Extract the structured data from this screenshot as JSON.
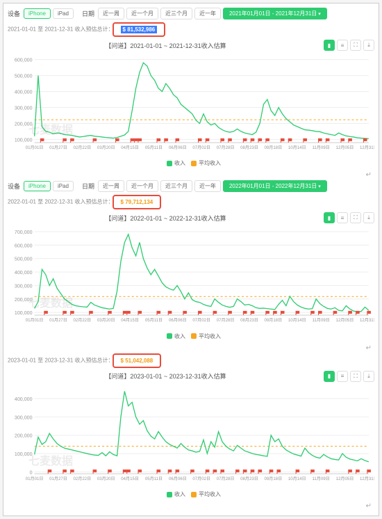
{
  "labels": {
    "device": "设备",
    "iphone": "iPhone",
    "ipad": "iPad",
    "date": "日期",
    "week": "近一周",
    "month": "近一个月",
    "threeMonths": "近三个月",
    "year": "近一年",
    "watermark": "七麦数据",
    "legend_revenue": "收入",
    "legend_avg": "平均收入",
    "summary_mid": " 收入预估总计：",
    "return": "↵"
  },
  "toolbar": [
    "bar",
    "line",
    "fullscreen",
    "download"
  ],
  "colors": {
    "line": "#2ecc71",
    "avg": "#f5a623",
    "grid": "#eeeeee",
    "axis": "#cccccc",
    "tick_text": "#999999",
    "marker": "#e74c3c",
    "highlight_box": "#e74c3c",
    "bg": "#ffffff"
  },
  "panels": [
    {
      "id": "p2021",
      "showFilters": true,
      "activeRange": "2021年01月01日 - 2021年12月31日",
      "summary_prefix": "2021-01-01 至 2021-12-31",
      "total": "$ 81,532,986",
      "total_style": "bluebg",
      "chart_title": "【问道】2021-01-01 ~ 2021-12-31收入估算",
      "yTicks": [
        100000,
        200000,
        300000,
        400000,
        500000,
        600000
      ],
      "yMin": 80000,
      "yMax": 620000,
      "xTicks": [
        "01月01日",
        "01月27日",
        "02月22日",
        "03月20日",
        "04月15日",
        "05月11日",
        "06月06日",
        "07月02日",
        "07月28日",
        "08月23日",
        "09月18日",
        "10月14日",
        "11月09日",
        "12月05日",
        "12月31日"
      ],
      "avg": 223000,
      "series": [
        120000,
        500000,
        180000,
        150000,
        145000,
        135000,
        140000,
        138000,
        130000,
        128000,
        125000,
        120000,
        115000,
        118000,
        122000,
        125000,
        120000,
        118000,
        115000,
        112000,
        110000,
        108000,
        112000,
        120000,
        128000,
        150000,
        280000,
        420000,
        520000,
        580000,
        560000,
        500000,
        470000,
        420000,
        400000,
        450000,
        420000,
        380000,
        360000,
        320000,
        300000,
        280000,
        260000,
        220000,
        200000,
        260000,
        210000,
        190000,
        200000,
        175000,
        160000,
        150000,
        145000,
        150000,
        165000,
        150000,
        140000,
        135000,
        130000,
        145000,
        200000,
        320000,
        350000,
        280000,
        250000,
        300000,
        260000,
        230000,
        210000,
        190000,
        180000,
        170000,
        160000,
        158000,
        155000,
        150000,
        148000,
        140000,
        135000,
        130000,
        125000,
        140000,
        130000,
        122000,
        118000,
        115000,
        110000,
        108000,
        106000,
        105000
      ],
      "markers": [
        2,
        8,
        10,
        16,
        22,
        26,
        27,
        28,
        33,
        35,
        38,
        44,
        46,
        50,
        52,
        56,
        58,
        60,
        62,
        66,
        68,
        72,
        76,
        78,
        82,
        84,
        88
      ]
    },
    {
      "id": "p2022",
      "showFilters": true,
      "activeRange": "2022年01月01日 - 2022年12月31日",
      "summary_prefix": "2022-01-01 至 2022-12-31",
      "total": "$ 79,712,134",
      "total_style": "orange",
      "chart_title": "【问道】2022-01-01 ~ 2022-12-31收入估算",
      "yTicks": [
        100000,
        200000,
        300000,
        400000,
        500000,
        600000,
        700000
      ],
      "yMin": 80000,
      "yMax": 720000,
      "xTicks": [
        "01月01日",
        "01月27日",
        "02月22日",
        "03月20日",
        "04月15日",
        "05月11日",
        "06月06日",
        "07月02日",
        "07月28日",
        "08月23日",
        "09月18日",
        "10月14日",
        "11月09日",
        "12月05日",
        "12月31日"
      ],
      "avg": 218000,
      "series": [
        130000,
        180000,
        420000,
        380000,
        300000,
        350000,
        280000,
        240000,
        200000,
        180000,
        160000,
        150000,
        145000,
        142000,
        140000,
        175000,
        155000,
        145000,
        135000,
        130000,
        125000,
        130000,
        260000,
        480000,
        620000,
        680000,
        580000,
        520000,
        620000,
        500000,
        430000,
        380000,
        420000,
        370000,
        320000,
        290000,
        275000,
        265000,
        300000,
        255000,
        200000,
        245000,
        195000,
        180000,
        175000,
        160000,
        150000,
        145000,
        200000,
        175000,
        155000,
        145000,
        138000,
        145000,
        200000,
        180000,
        155000,
        160000,
        150000,
        135000,
        130000,
        132000,
        128000,
        125000,
        122000,
        160000,
        190000,
        150000,
        220000,
        180000,
        155000,
        140000,
        130000,
        125000,
        128000,
        200000,
        165000,
        145000,
        130000,
        125000,
        135000,
        115000,
        112000,
        150000,
        125000,
        110000,
        105000,
        108000,
        140000,
        115000
      ],
      "markers": [
        3,
        8,
        10,
        15,
        20,
        24,
        25,
        28,
        33,
        36,
        40,
        44,
        48,
        52,
        56,
        58,
        62,
        64,
        66,
        70,
        74,
        76,
        80,
        84,
        86,
        89
      ]
    },
    {
      "id": "p2023",
      "showFilters": false,
      "summary_prefix": "2023-01-01 至 2023-12-31",
      "total": "$ 51,042,088",
      "total_style": "orange",
      "chart_title": "【问道】2023-01-01 ~ 2023-12-31收入估算",
      "yTicks": [
        0,
        100000,
        200000,
        300000,
        400000
      ],
      "yMin": -10000,
      "yMax": 460000,
      "xTicks": [
        "01月01日",
        "01月27日",
        "02月22日",
        "03月20日",
        "04月15日",
        "05月11日",
        "06月06日",
        "07月02日",
        "07月28日",
        "08月23日",
        "09月18日",
        "10月14日",
        "11月09日",
        "12月05日",
        "12月31日"
      ],
      "avg": 140000,
      "series": [
        95000,
        190000,
        150000,
        165000,
        210000,
        180000,
        155000,
        140000,
        130000,
        125000,
        120000,
        115000,
        110000,
        105000,
        100000,
        95000,
        92000,
        90000,
        105000,
        88000,
        110000,
        95000,
        88000,
        300000,
        440000,
        360000,
        380000,
        300000,
        260000,
        280000,
        225000,
        195000,
        180000,
        220000,
        190000,
        165000,
        150000,
        140000,
        130000,
        155000,
        135000,
        120000,
        115000,
        108000,
        112000,
        175000,
        100000,
        165000,
        135000,
        220000,
        165000,
        140000,
        125000,
        115000,
        145000,
        130000,
        115000,
        108000,
        100000,
        95000,
        92000,
        88000,
        85000,
        200000,
        165000,
        180000,
        140000,
        120000,
        108000,
        98000,
        92000,
        86000,
        130000,
        105000,
        90000,
        80000,
        75000,
        95000,
        82000,
        72000,
        68000,
        65000,
        100000,
        80000,
        70000,
        65000,
        60000,
        72000,
        62000,
        55000
      ],
      "markers": [
        4,
        8,
        10,
        16,
        20,
        24,
        25,
        28,
        33,
        36,
        38,
        42,
        46,
        48,
        50,
        54,
        56,
        58,
        60,
        63,
        65,
        70,
        74,
        78,
        84,
        86,
        89
      ]
    }
  ]
}
